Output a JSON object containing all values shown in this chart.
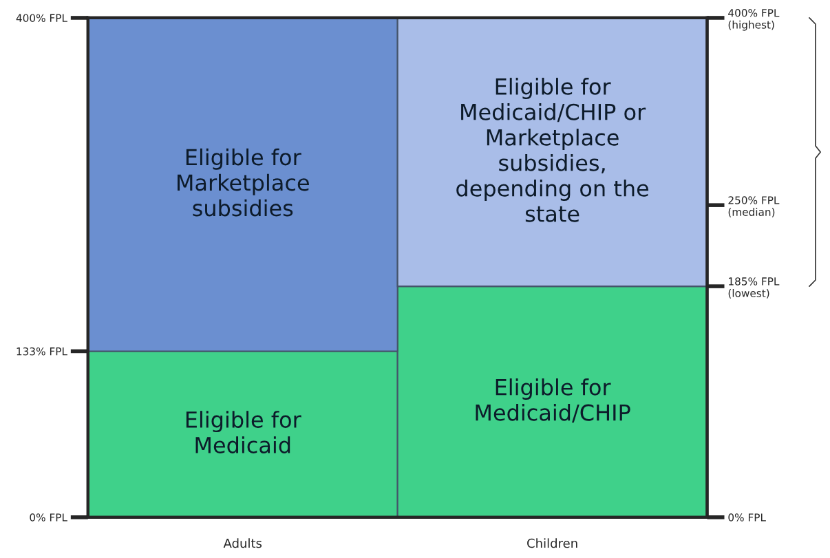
{
  "chart_data": {
    "type": "bar",
    "stacked": true,
    "categories": [
      "Adults",
      "Children"
    ],
    "series": [
      {
        "name": "Eligible for\nMedicaid",
        "color": "#3fd18a",
        "values": [
          133,
          null
        ]
      },
      {
        "name": "Eligible for\nMedicaid/CHIP",
        "color": "#3fd18a",
        "values": [
          null,
          185
        ]
      },
      {
        "name": "Eligible for\nMarketplace\nsubsidies",
        "color": "#6b8fd0",
        "values": [
          267,
          null
        ]
      },
      {
        "name": "Eligible for\nMedicaid/CHIP or\nMarketplace\nsubsidies,\ndepending on the\nstate",
        "color": "#a9bde8",
        "values": [
          null,
          215
        ]
      }
    ],
    "ylim": [
      0,
      400
    ],
    "yticks": [
      {
        "value": 0,
        "label": "0% FPL"
      },
      {
        "value": 133,
        "label": "133% FPL"
      },
      {
        "value": 400,
        "label": "400% FPL"
      }
    ],
    "y2lim": [
      0,
      400
    ],
    "y2ticks": [
      {
        "value": 0,
        "label": "0% FPL"
      },
      {
        "value": 185,
        "label": "185% FPL\n(lowest)"
      },
      {
        "value": 250,
        "label": "250% FPL\n(median)"
      },
      {
        "value": 400,
        "label": "400% FPL\n(highest)"
      }
    ],
    "legend": false
  }
}
